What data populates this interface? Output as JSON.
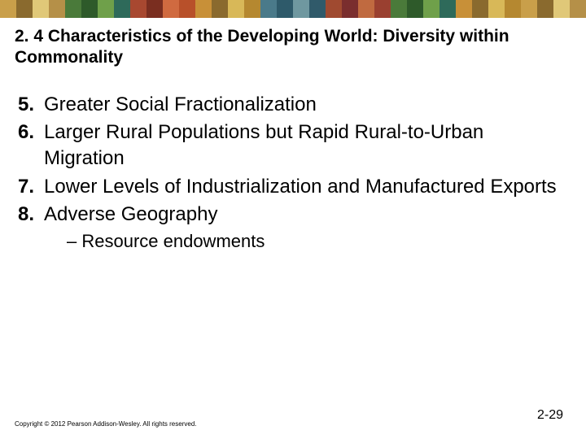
{
  "border_colors": [
    "#c99f4a",
    "#8a6a2e",
    "#e0c878",
    "#b59048",
    "#4a7a3a",
    "#2e5a2a",
    "#6fa04a",
    "#2e6a5a",
    "#a84830",
    "#7a2e20",
    "#d06a40",
    "#b8502a",
    "#c89038",
    "#8a6a2e",
    "#d8b858",
    "#b58830",
    "#4a7a8a",
    "#2e5a6a",
    "#6f98a0",
    "#305a6a",
    "#a04a30",
    "#7a2e2e",
    "#c06a40",
    "#9a4030",
    "#4a7a3a",
    "#2e5a2a",
    "#6fa04a",
    "#2e6a5a",
    "#c89038",
    "#8a6a2e",
    "#d8b858",
    "#b58830",
    "#c99f4a",
    "#8a6a2e",
    "#e0c878",
    "#b59048"
  ],
  "title": "2. 4 Characteristics of the Developing World: Diversity within Commonality",
  "items": [
    {
      "num": "5.",
      "text": "Greater Social Fractionalization"
    },
    {
      "num": "6.",
      "text": "Larger Rural Populations but Rapid Rural-to-Urban Migration"
    },
    {
      "num": "7.",
      "text": "Lower Levels of Industrialization and Manufactured Exports"
    },
    {
      "num": "8.",
      "text": "Adverse Geography"
    }
  ],
  "sub_item": "– Resource endowments",
  "copyright": "Copyright © 2012 Pearson Addison-Wesley. All rights reserved.",
  "page_number": "2-29"
}
